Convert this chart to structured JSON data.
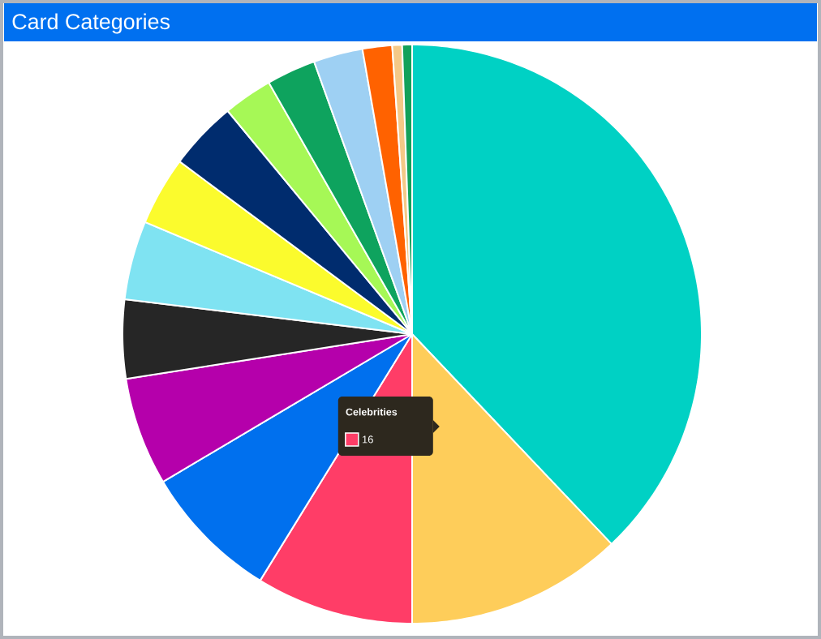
{
  "chart_data": {
    "type": "pie",
    "title": "Card Categories",
    "categories": [
      null,
      null,
      "Celebrities",
      null,
      null,
      null,
      null,
      null,
      null,
      null,
      null,
      null,
      null,
      null,
      null
    ],
    "values": [
      69,
      22,
      16,
      14,
      11,
      8,
      8,
      7,
      7,
      5,
      5,
      5,
      3,
      1,
      1
    ],
    "value_labels": [
      null,
      null,
      "16",
      null,
      null,
      null,
      null,
      null,
      null,
      null,
      null,
      null,
      null,
      null,
      null
    ],
    "colors": [
      "#00d1c4",
      "#fecd5a",
      "#ff3d67",
      "#0070ee",
      "#b500ab",
      "#262626",
      "#7fe3f2",
      "#fbfb2d",
      "#002c6e",
      "#a6f856",
      "#0ea35e",
      "#9ed0f3",
      "#ff6200",
      "#f4c987",
      "#12a15a"
    ]
  }
}
